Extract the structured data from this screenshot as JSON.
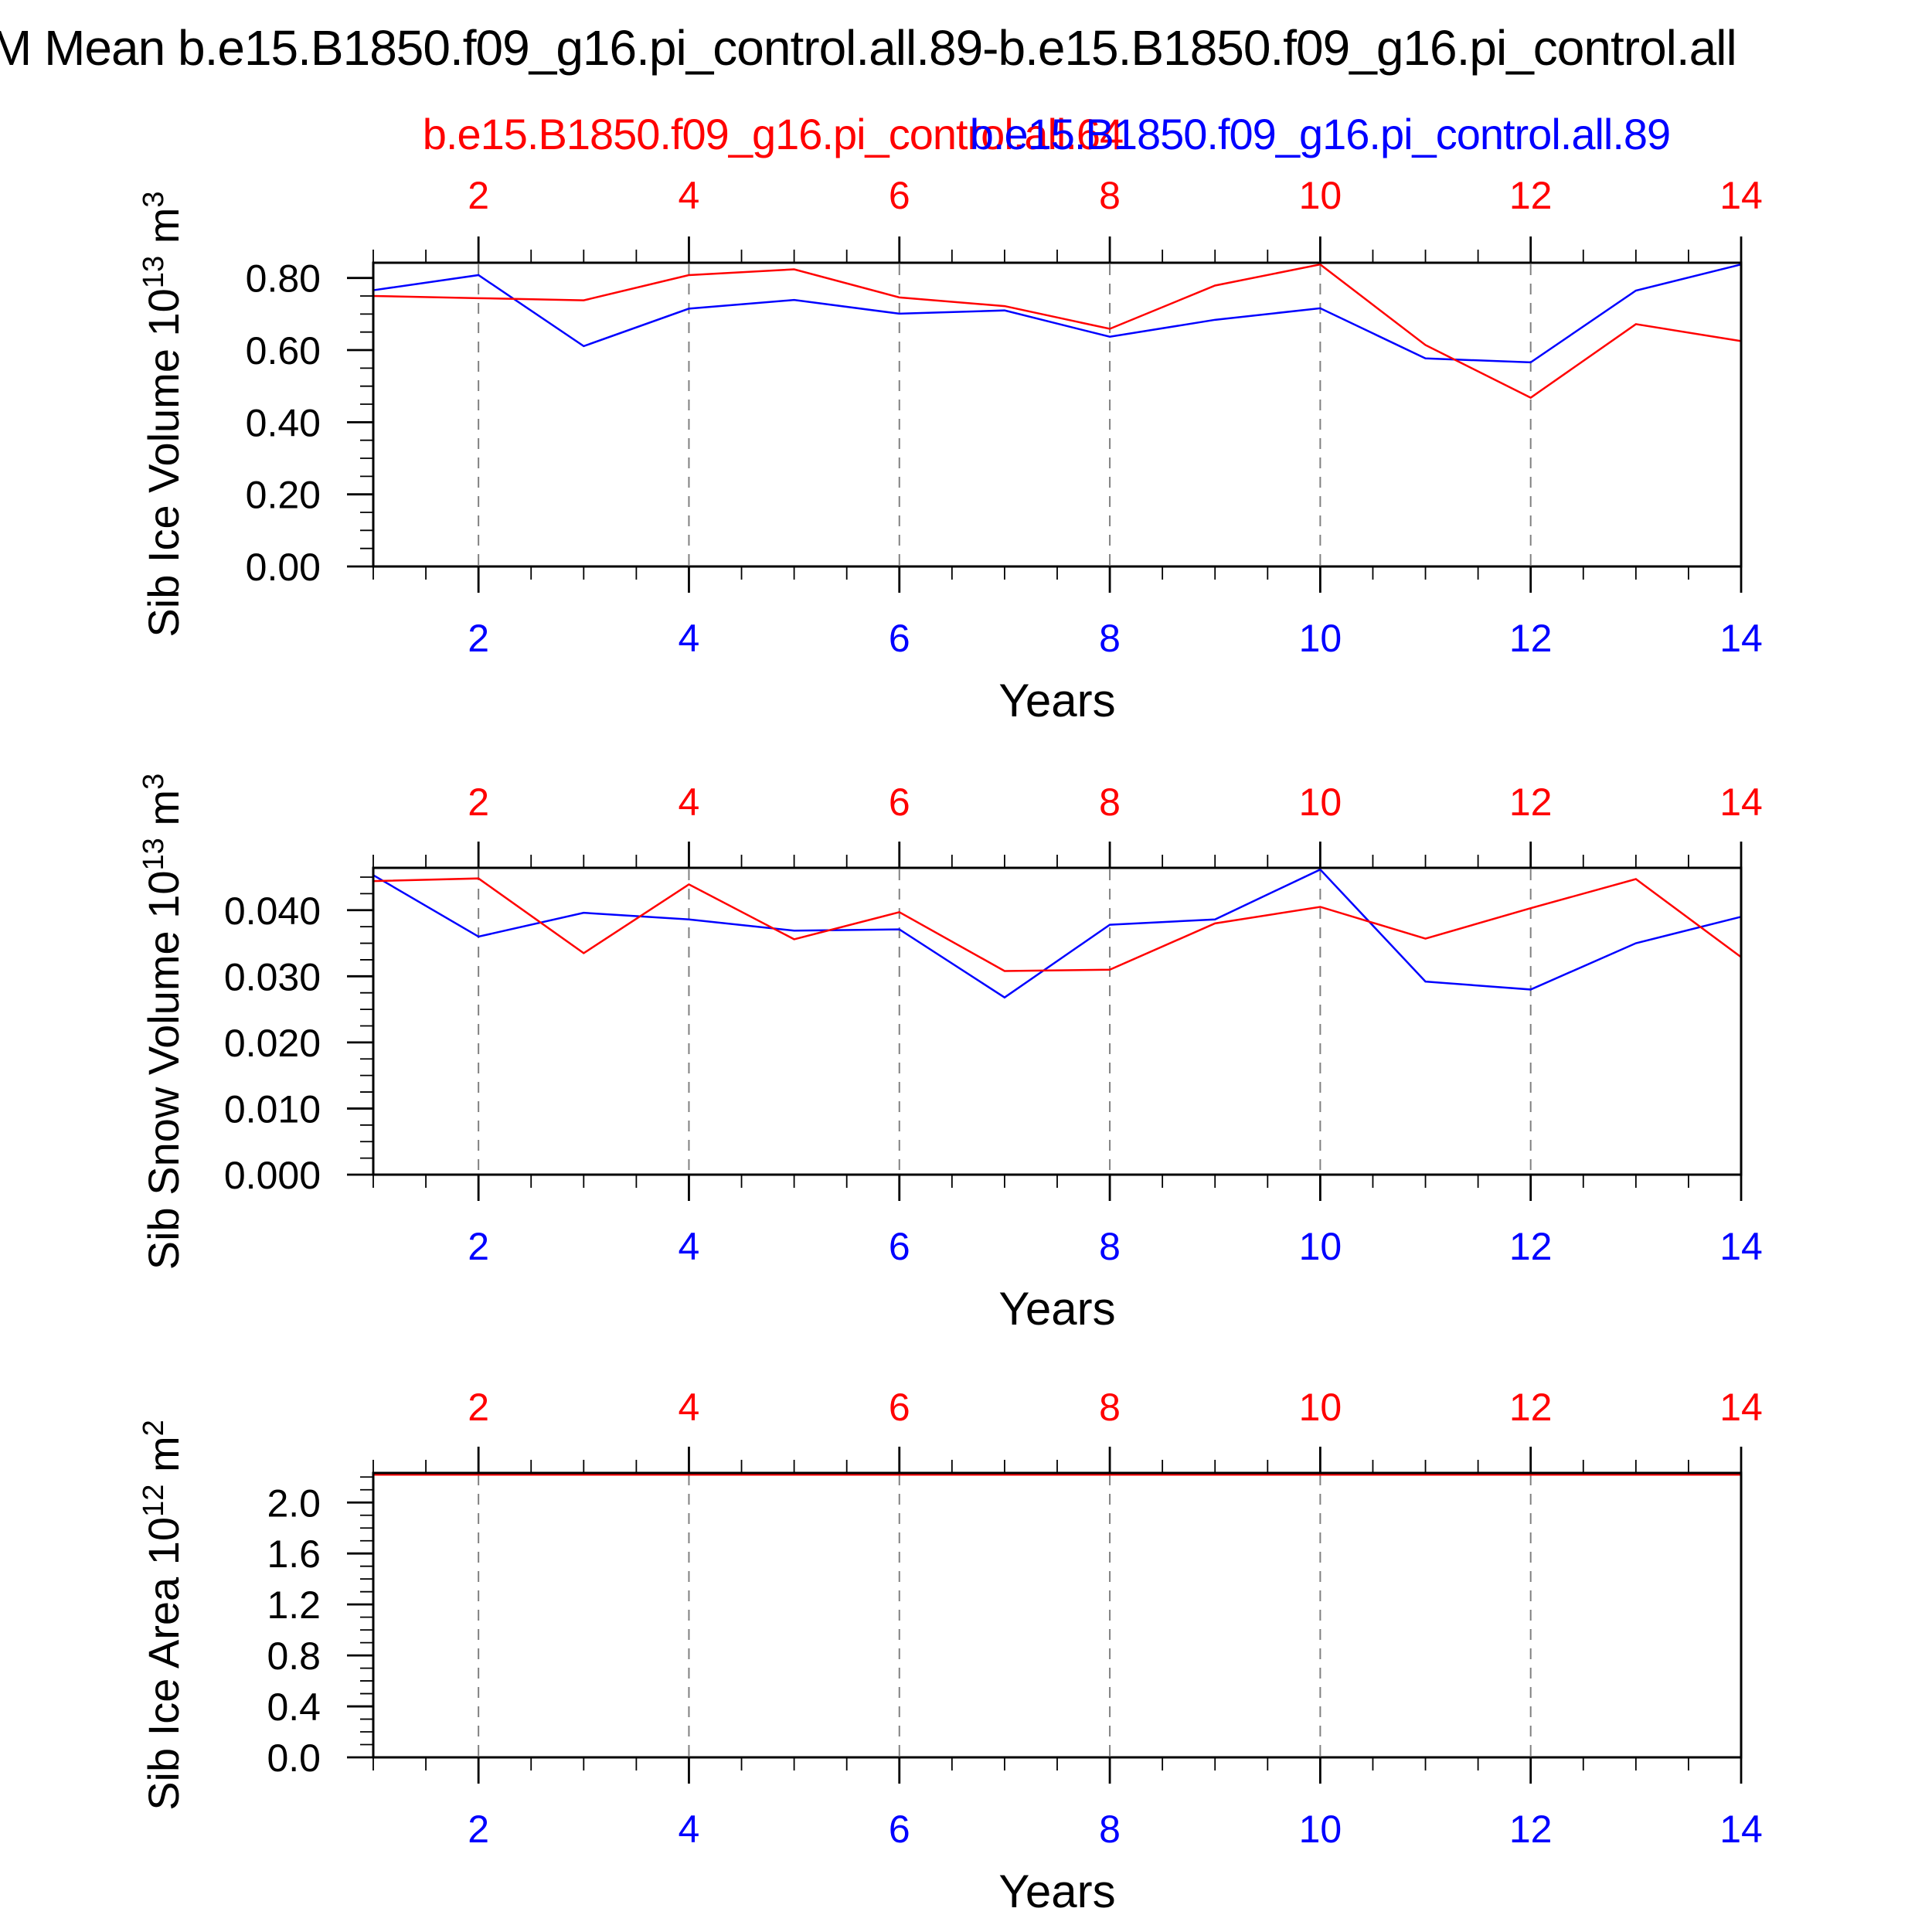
{
  "title": "M Mean b.e15.B1850.f09_g16.pi_control.all.89-b.e15.B1850.f09_g16.pi_control.all",
  "legend": {
    "series": [
      {
        "label": "b.e15.B1850.f09_g16.pi_control.all.64",
        "color": "#ff0000"
      },
      {
        "label": "b.e15.B1850.f09_g16.pi_control.all.89",
        "color": "#0000ff"
      }
    ]
  },
  "axes_style": {
    "top_axis_number_color": "#ff0000",
    "bottom_axis_number_color": "#0000ff",
    "frame_color": "#000000",
    "gridline_color": "#808080",
    "gridline_style": "dashed"
  },
  "chart_data": [
    {
      "type": "line",
      "panel": "top",
      "x": [
        1,
        2,
        3,
        4,
        5,
        6,
        7,
        8,
        9,
        10,
        11,
        12,
        13,
        14
      ],
      "xlabel": "Years",
      "x_labeled_ticks": [
        2,
        4,
        6,
        8,
        10,
        12,
        14
      ],
      "x_gridlines": [
        2,
        4,
        6,
        8,
        10,
        12
      ],
      "x_minor_step": 0.5,
      "xlim": [
        1,
        14
      ],
      "ylabel_parts": [
        {
          "t": "Sib Ice Volume 10"
        },
        {
          "sup": "13"
        },
        {
          "t": " m"
        },
        {
          "sup": "3"
        }
      ],
      "ylim": [
        0,
        0.8422
      ],
      "y_minor_step": 0.05,
      "yticks": [
        {
          "v": 0.0,
          "label": "0.00"
        },
        {
          "v": 0.2,
          "label": "0.20"
        },
        {
          "v": 0.4,
          "label": "0.40"
        },
        {
          "v": 0.6,
          "label": "0.60"
        },
        {
          "v": 0.8,
          "label": "0.80"
        }
      ],
      "grid": true,
      "series": [
        {
          "name": "b.e15.B1850.f09_g16.pi_control.all.64",
          "color": "#ff0000",
          "values": [
            0.75,
            0.744,
            0.738,
            0.808,
            0.824,
            0.746,
            0.722,
            0.659,
            0.779,
            0.842,
            0.614,
            0.468,
            0.672,
            0.625
          ]
        },
        {
          "name": "b.e15.B1850.f09_g16.pi_control.all.89",
          "color": "#0000ff",
          "values": [
            0.766,
            0.808,
            0.611,
            0.715,
            0.739,
            0.701,
            0.71,
            0.637,
            0.684,
            0.716,
            0.577,
            0.566,
            0.765,
            0.838
          ]
        }
      ]
    },
    {
      "type": "line",
      "panel": "middle",
      "x": [
        1,
        2,
        3,
        4,
        5,
        6,
        7,
        8,
        9,
        10,
        11,
        12,
        13,
        14
      ],
      "xlabel": "Years",
      "x_labeled_ticks": [
        2,
        4,
        6,
        8,
        10,
        12,
        14
      ],
      "x_gridlines": [
        2,
        4,
        6,
        8,
        10,
        12
      ],
      "x_minor_step": 0.5,
      "xlim": [
        1,
        14
      ],
      "ylabel_parts": [
        {
          "t": "Sib Snow Volume 10"
        },
        {
          "sup": "13"
        },
        {
          "t": " m"
        },
        {
          "sup": "3"
        }
      ],
      "ylim": [
        0,
        0.0464
      ],
      "y_minor_step": 0.0025,
      "yticks": [
        {
          "v": 0.0,
          "label": "0.000"
        },
        {
          "v": 0.01,
          "label": "0.010"
        },
        {
          "v": 0.02,
          "label": "0.020"
        },
        {
          "v": 0.03,
          "label": "0.030"
        },
        {
          "v": 0.04,
          "label": "0.040"
        }
      ],
      "grid": true,
      "series": [
        {
          "name": "b.e15.B1850.f09_g16.pi_control.all.64",
          "color": "#ff0000",
          "values": [
            0.0444,
            0.0448,
            0.0335,
            0.0439,
            0.0356,
            0.0397,
            0.0308,
            0.031,
            0.038,
            0.0405,
            0.0357,
            0.0403,
            0.0447,
            0.0329
          ]
        },
        {
          "name": "b.e15.B1850.f09_g16.pi_control.all.89",
          "color": "#0000ff",
          "values": [
            0.0453,
            0.036,
            0.0396,
            0.0386,
            0.0369,
            0.0371,
            0.0268,
            0.0378,
            0.0386,
            0.0462,
            0.0292,
            0.028,
            0.035,
            0.039
          ]
        }
      ]
    },
    {
      "type": "line",
      "panel": "bottom",
      "x": [
        1,
        2,
        3,
        4,
        5,
        6,
        7,
        8,
        9,
        10,
        11,
        12,
        13,
        14
      ],
      "xlabel": "Years",
      "x_labeled_ticks": [
        2,
        4,
        6,
        8,
        10,
        12,
        14
      ],
      "x_gridlines": [
        2,
        4,
        6,
        8,
        10,
        12
      ],
      "x_minor_step": 0.5,
      "xlim": [
        1,
        14
      ],
      "ylabel_parts": [
        {
          "t": "Sib Ice Area 10"
        },
        {
          "sup": "12"
        },
        {
          "t": " m"
        },
        {
          "sup": "2"
        }
      ],
      "ylim": [
        0,
        2.232
      ],
      "y_minor_step": 0.1,
      "yticks": [
        {
          "v": 0.0,
          "label": "0.0"
        },
        {
          "v": 0.4,
          "label": "0.4"
        },
        {
          "v": 0.8,
          "label": "0.8"
        },
        {
          "v": 1.2,
          "label": "1.2"
        },
        {
          "v": 1.6,
          "label": "1.6"
        },
        {
          "v": 2.0,
          "label": "2.0"
        }
      ],
      "grid": true,
      "note": "Both series lie above the y-axis maximum; lines are clipped flat along the top frame.",
      "series": [
        {
          "name": "b.e15.B1850.f09_g16.pi_control.all.64",
          "color": "#ff0000",
          "clipped_at_top": true,
          "values": [
            2.23,
            2.23,
            2.23,
            2.23,
            2.23,
            2.23,
            2.23,
            2.23,
            2.23,
            2.23,
            2.23,
            2.23,
            2.23,
            2.23
          ]
        },
        {
          "name": "b.e15.B1850.f09_g16.pi_control.all.89",
          "color": "#0000ff",
          "clipped_at_top": true,
          "values": [
            2.23,
            2.23,
            2.23,
            2.23,
            2.23,
            2.23,
            2.23,
            2.23,
            2.23,
            2.23,
            2.23,
            2.23,
            2.23,
            2.23
          ]
        }
      ]
    }
  ]
}
